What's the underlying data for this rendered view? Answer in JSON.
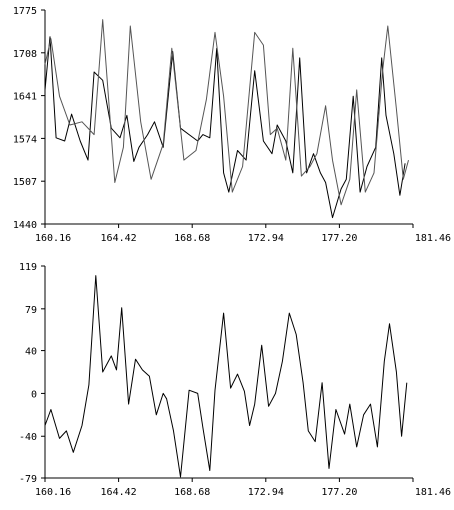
{
  "chart_data": [
    {
      "type": "line",
      "title": "",
      "xlabel": "",
      "ylabel": "",
      "xlim": [
        160.16,
        181.46
      ],
      "ylim": [
        1440,
        1775
      ],
      "x_ticks": [
        "160.16",
        "164.42",
        "168.68",
        "172.94",
        "177.20",
        "181.46"
      ],
      "y_ticks": [
        "1440",
        "1507",
        "1574",
        "1641",
        "1708",
        "1775"
      ],
      "grid": false,
      "series": [
        {
          "color": "#000000",
          "x": [
            160.16,
            160.45,
            160.8,
            161.3,
            161.7,
            162.2,
            162.65,
            163.0,
            163.5,
            164.0,
            164.5,
            164.9,
            165.3,
            165.6,
            166.1,
            166.5,
            167.0,
            167.55,
            168.0,
            168.5,
            169.0,
            169.3,
            169.7,
            170.1,
            170.5,
            170.8,
            171.3,
            171.8,
            172.3,
            172.8,
            173.3,
            173.6,
            174.1,
            174.5,
            174.9,
            175.3,
            175.7,
            176.1,
            176.4,
            176.8,
            177.3,
            177.6,
            178.0,
            178.4,
            178.8,
            179.3,
            179.65,
            179.9,
            180.35,
            180.7,
            181.0
          ],
          "y": [
            1650,
            1733,
            1575,
            1570,
            1612,
            1570,
            1540,
            1678,
            1665,
            1590,
            1575,
            1610,
            1538,
            1560,
            1580,
            1600,
            1560,
            1710,
            1590,
            1580,
            1570,
            1580,
            1575,
            1715,
            1520,
            1490,
            1555,
            1540,
            1680,
            1570,
            1550,
            1595,
            1570,
            1520,
            1700,
            1520,
            1550,
            1520,
            1505,
            1450,
            1495,
            1510,
            1640,
            1490,
            1530,
            1560,
            1700,
            1610,
            1550,
            1485,
            1535
          ]
        },
        {
          "color": "#555555",
          "x": [
            160.16,
            160.5,
            161.0,
            161.6,
            162.3,
            163.0,
            163.5,
            164.2,
            164.7,
            165.1,
            165.7,
            166.3,
            167.0,
            167.5,
            168.2,
            168.9,
            169.5,
            170.0,
            170.5,
            171.0,
            171.6,
            172.3,
            172.8,
            173.2,
            173.6,
            174.1,
            174.5,
            175.0,
            175.5,
            175.9,
            176.4,
            176.8,
            177.3,
            177.8,
            178.2,
            178.7,
            179.2,
            179.7,
            180.0,
            180.5,
            180.9,
            181.2
          ],
          "y": [
            1690,
            1730,
            1640,
            1595,
            1600,
            1580,
            1760,
            1505,
            1560,
            1750,
            1600,
            1510,
            1565,
            1715,
            1540,
            1555,
            1635,
            1740,
            1640,
            1490,
            1530,
            1740,
            1720,
            1580,
            1590,
            1540,
            1715,
            1515,
            1530,
            1550,
            1625,
            1540,
            1470,
            1510,
            1650,
            1490,
            1520,
            1680,
            1750,
            1620,
            1510,
            1540
          ]
        }
      ]
    },
    {
      "type": "line",
      "title": "",
      "xlabel": "",
      "ylabel": "",
      "xlim": [
        160.16,
        181.46
      ],
      "ylim": [
        -79,
        119
      ],
      "x_ticks": [
        "160.16",
        "164.42",
        "168.68",
        "172.94",
        "177.20",
        "181.46"
      ],
      "y_ticks": [
        "-79",
        "-40",
        "0",
        "40",
        "79",
        "119"
      ],
      "grid": false,
      "series": [
        {
          "color": "#000000",
          "x": [
            160.16,
            160.5,
            161.0,
            161.4,
            161.8,
            162.3,
            162.7,
            163.1,
            163.5,
            164.0,
            164.3,
            164.6,
            165.0,
            165.4,
            165.8,
            166.2,
            166.6,
            167.0,
            167.2,
            167.6,
            168.0,
            168.5,
            169.0,
            169.3,
            169.7,
            170.0,
            170.5,
            170.9,
            171.3,
            171.7,
            172.0,
            172.3,
            172.7,
            173.1,
            173.5,
            173.9,
            174.3,
            174.7,
            175.1,
            175.4,
            175.8,
            176.2,
            176.6,
            177.0,
            177.5,
            177.8,
            178.2,
            178.6,
            179.0,
            179.4,
            179.8,
            180.1,
            180.5,
            180.8,
            181.1
          ],
          "y": [
            -30,
            -15,
            -42,
            -35,
            -55,
            -30,
            8,
            110,
            20,
            35,
            22,
            80,
            -10,
            32,
            22,
            16,
            -20,
            0,
            -5,
            -35,
            -78,
            3,
            0,
            -32,
            -72,
            3,
            75,
            5,
            18,
            2,
            -30,
            -10,
            45,
            -12,
            0,
            30,
            75,
            55,
            10,
            -35,
            -45,
            10,
            -70,
            -15,
            -38,
            -10,
            -50,
            -20,
            -10,
            -50,
            30,
            65,
            20,
            -40,
            10
          ]
        }
      ]
    }
  ]
}
